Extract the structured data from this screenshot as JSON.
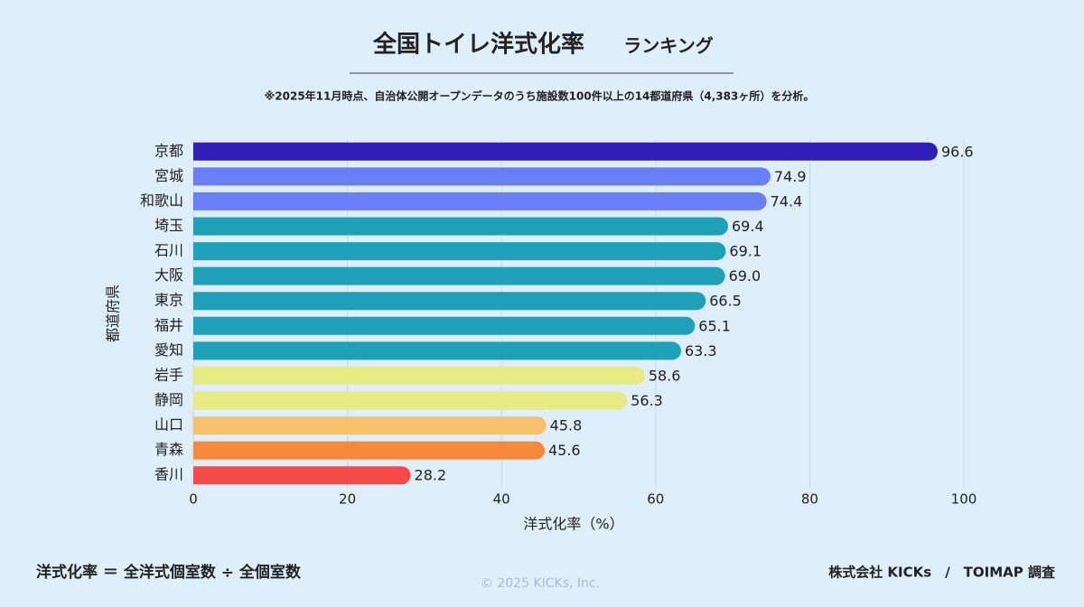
{
  "chart_data": {
    "type": "barh",
    "title": "全国トイレ洋式化率",
    "title_suffix": "ランキング",
    "subtitle": "※2025年11月時点、自治体公開オープンデータのうち施設数100件以上の14都道府県（4,383ヶ所）を分析。",
    "ylabel": "都道府県",
    "xlabel": "洋式化率（%）",
    "categories": [
      "京都",
      "宮城",
      "和歌山",
      "埼玉",
      "石川",
      "大阪",
      "東京",
      "福井",
      "愛知",
      "岩手",
      "静岡",
      "山口",
      "青森",
      "香川"
    ],
    "values": [
      96.6,
      74.9,
      74.4,
      69.4,
      69.1,
      69.0,
      66.5,
      65.1,
      63.3,
      58.6,
      56.3,
      45.8,
      45.6,
      28.2
    ],
    "value_labels": [
      "96.6",
      "74.9",
      "74.4",
      "69.4",
      "69.1",
      "69.0",
      "66.5",
      "65.1",
      "63.3",
      "58.6",
      "56.3",
      "45.8",
      "45.6",
      "28.2"
    ],
    "colors": [
      "#2f1fb8",
      "#6a7ef7",
      "#6a7ef7",
      "#1fa0b9",
      "#1fa0b9",
      "#1fa0b9",
      "#1fa0b9",
      "#1fa0b9",
      "#1fa0b9",
      "#e8ea85",
      "#e8ea85",
      "#f7c06c",
      "#f6883b",
      "#f54a4a"
    ],
    "xlim": [
      0,
      100
    ],
    "xticks": [
      0,
      20,
      40,
      60,
      80,
      100
    ],
    "grid": true,
    "formula": "洋式化率 ＝ 全洋式個室数 ÷ 全個室数",
    "copyright": "© 2025 KICKs, Inc.",
    "credit": "株式会社 KICKs　/　TOIMAP 調査"
  }
}
